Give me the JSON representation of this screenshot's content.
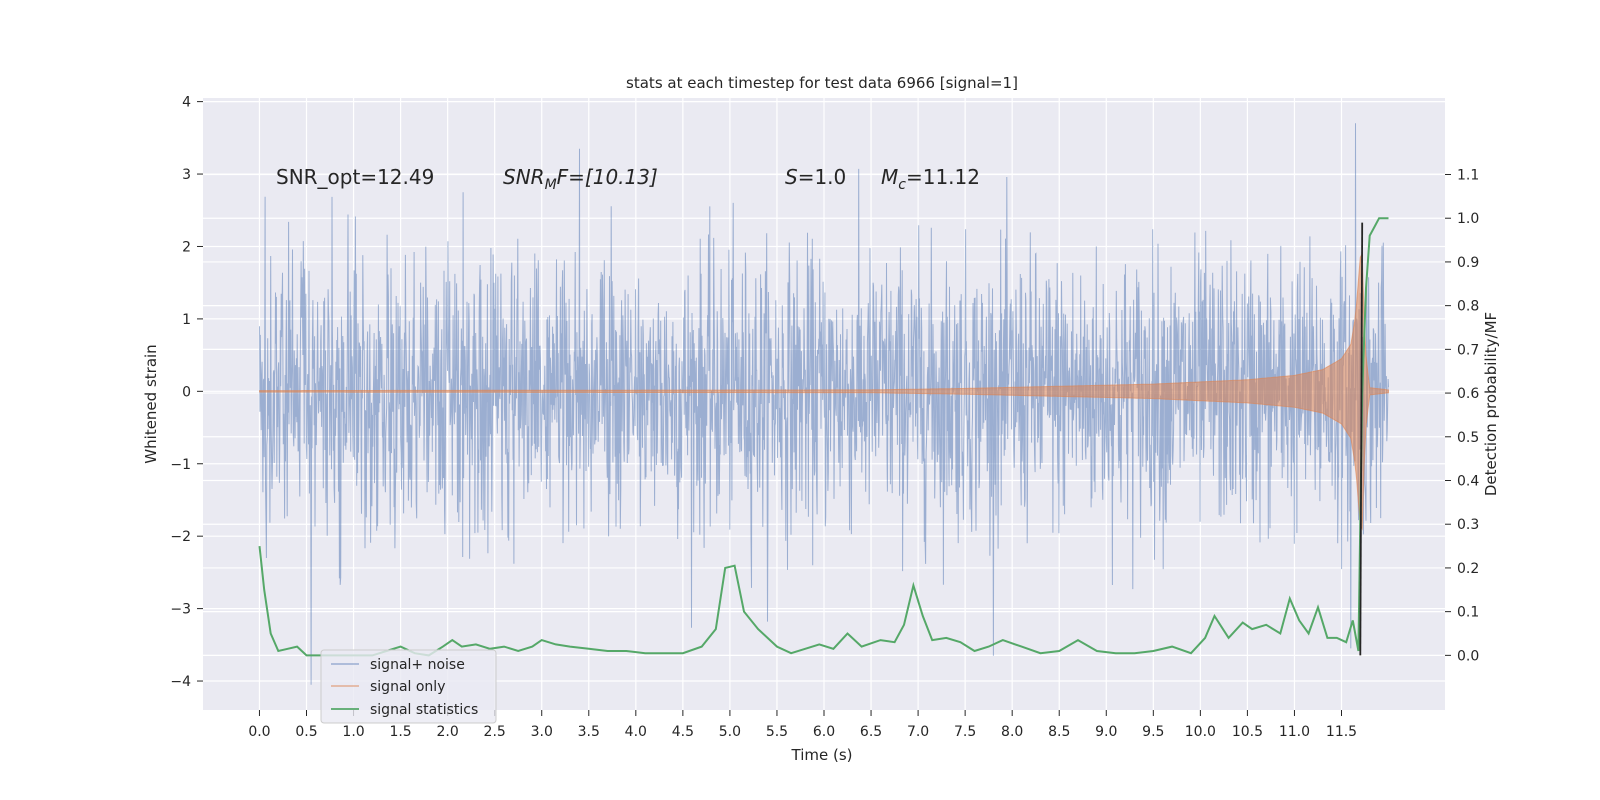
{
  "chart_data": {
    "type": "line",
    "title": "stats at each timestep for test data 6966 [signal=1]",
    "xlabel": "Time (s)",
    "ylabel_left": "Whitened strain",
    "ylabel_right": "Detection probability/MF",
    "xlim": [
      -0.6,
      12.6
    ],
    "ylim_left": [
      -4.4,
      4.05
    ],
    "ylim_right": [
      -0.125,
      1.275
    ],
    "x_ticks": [
      "0.0",
      "0.5",
      "1.0",
      "1.5",
      "2.0",
      "2.5",
      "3.0",
      "3.5",
      "4.0",
      "4.5",
      "5.0",
      "5.5",
      "6.0",
      "6.5",
      "7.0",
      "7.5",
      "8.0",
      "8.5",
      "9.0",
      "9.5",
      "10.0",
      "10.5",
      "11.0",
      "11.5"
    ],
    "x_tick_values": [
      0,
      0.5,
      1,
      1.5,
      2,
      2.5,
      3,
      3.5,
      4,
      4.5,
      5,
      5.5,
      6,
      6.5,
      7,
      7.5,
      8,
      8.5,
      9,
      9.5,
      10,
      10.5,
      11,
      11.5
    ],
    "y_ticks_left": [
      "4",
      "3",
      "2",
      "1",
      "0",
      "−1",
      "−2",
      "−3",
      "−4"
    ],
    "y_tick_values_left": [
      4,
      3,
      2,
      1,
      0,
      -1,
      -2,
      -3,
      -4
    ],
    "y_ticks_right": [
      "1.1",
      "1.0",
      "0.9",
      "0.8",
      "0.7",
      "0.6",
      "0.5",
      "0.4",
      "0.3",
      "0.2",
      "0.1",
      "0.0"
    ],
    "y_tick_values_right": [
      1.1,
      1.0,
      0.9,
      0.8,
      0.7,
      0.6,
      0.5,
      0.4,
      0.3,
      0.2,
      0.1,
      0.0
    ],
    "grid": true,
    "legend_position": "lower-left",
    "annotations": {
      "snr_opt": "SNR_opt=12.49",
      "snr_mf_label": "SNR",
      "snr_mf_sub": "M",
      "snr_mf_rest": "F=[10.13]",
      "s_label": "S",
      "s_rest": "=1.0",
      "mc_label": "M",
      "mc_sub": "c",
      "mc_rest": "=11.12"
    },
    "series": [
      {
        "name": "signal+ noise",
        "color": "#4c72b0",
        "axis": "left",
        "x_range": [
          0,
          12.0
        ],
        "typical_envelope": 1.5,
        "peak_values": [
          {
            "x": 0.55,
            "y": -4.05
          },
          {
            "x": 3.4,
            "y": 3.35
          },
          {
            "x": 7.8,
            "y": -3.65
          },
          {
            "x": 11.65,
            "y": 3.7
          },
          {
            "x": 11.6,
            "y": -3.55
          }
        ]
      },
      {
        "name": "signal only",
        "color": "#dd8452",
        "axis": "left",
        "x": [
          0,
          6.5,
          7.5,
          8.5,
          9.5,
          10,
          10.5,
          11,
          11.3,
          11.5,
          11.6,
          11.65,
          11.7,
          11.72,
          11.75,
          11.8,
          12.0
        ],
        "amplitude": [
          0.01,
          0.02,
          0.04,
          0.07,
          0.1,
          0.13,
          0.16,
          0.22,
          0.3,
          0.45,
          0.65,
          1.05,
          1.85,
          1.9,
          0.6,
          0.05,
          0.02
        ]
      },
      {
        "name": "signal statistics",
        "color": "#55a868",
        "axis": "right",
        "x": [
          0,
          0.05,
          0.12,
          0.2,
          0.3,
          0.4,
          0.5,
          0.6,
          0.8,
          1.0,
          1.2,
          1.35,
          1.5,
          1.65,
          1.8,
          1.95,
          2.05,
          2.15,
          2.3,
          2.45,
          2.6,
          2.75,
          2.9,
          3.0,
          3.15,
          3.3,
          3.5,
          3.7,
          3.9,
          4.1,
          4.3,
          4.5,
          4.7,
          4.85,
          4.95,
          5.05,
          5.15,
          5.3,
          5.5,
          5.65,
          5.8,
          5.95,
          6.1,
          6.25,
          6.4,
          6.6,
          6.75,
          6.85,
          6.95,
          7.05,
          7.15,
          7.3,
          7.45,
          7.6,
          7.75,
          7.9,
          8.1,
          8.3,
          8.5,
          8.7,
          8.9,
          9.1,
          9.3,
          9.5,
          9.7,
          9.9,
          10.05,
          10.15,
          10.3,
          10.45,
          10.55,
          10.7,
          10.85,
          10.95,
          11.05,
          11.15,
          11.25,
          11.35,
          11.45,
          11.55,
          11.62,
          11.68,
          11.72,
          11.76,
          11.8,
          11.85,
          11.9,
          11.95,
          12.0
        ],
        "values": [
          0.25,
          0.15,
          0.05,
          0.01,
          0.015,
          0.02,
          0.0,
          0.0,
          0.0,
          0.0,
          0.0,
          0.01,
          0.02,
          0.005,
          0.0,
          0.02,
          0.035,
          0.02,
          0.025,
          0.015,
          0.02,
          0.01,
          0.02,
          0.035,
          0.025,
          0.02,
          0.015,
          0.01,
          0.01,
          0.005,
          0.005,
          0.005,
          0.02,
          0.06,
          0.2,
          0.205,
          0.1,
          0.06,
          0.02,
          0.005,
          0.015,
          0.025,
          0.015,
          0.05,
          0.02,
          0.035,
          0.03,
          0.07,
          0.16,
          0.09,
          0.035,
          0.04,
          0.03,
          0.01,
          0.02,
          0.035,
          0.02,
          0.005,
          0.01,
          0.035,
          0.01,
          0.005,
          0.005,
          0.01,
          0.02,
          0.005,
          0.04,
          0.09,
          0.04,
          0.075,
          0.06,
          0.07,
          0.05,
          0.13,
          0.08,
          0.05,
          0.11,
          0.04,
          0.04,
          0.03,
          0.08,
          0.01,
          0.6,
          0.84,
          0.96,
          0.98,
          1.0,
          1.0,
          1.0
        ]
      },
      {
        "name": "",
        "color": "#262626",
        "axis": "right",
        "x": [
          11.7,
          11.72
        ],
        "values": [
          0.0,
          0.99
        ]
      }
    ]
  },
  "colors": {
    "plot_background": "#eaeaf2",
    "grid": "#ffffff",
    "noise": "#4c72b0",
    "signal": "#dd8452",
    "stat": "#55a868"
  }
}
